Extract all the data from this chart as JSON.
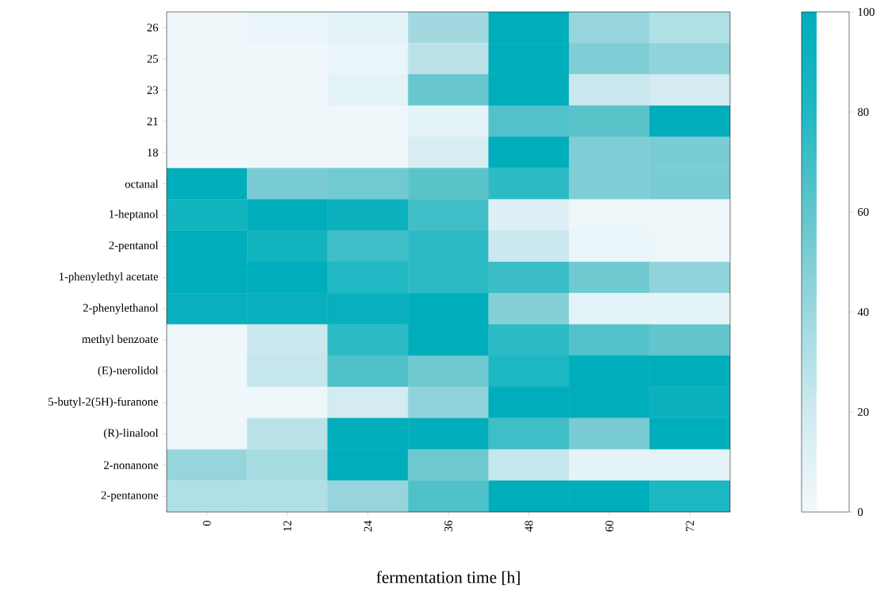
{
  "chart_data": {
    "type": "heatmap",
    "xlabel": "fermentation time [h]",
    "categories": [
      "0",
      "12",
      "24",
      "36",
      "48",
      "60",
      "72"
    ],
    "y_categories": [
      "26",
      "25",
      "23",
      "21",
      "18",
      "octanal",
      "1-heptanol",
      "2-pentanol",
      "1-phenylethyl acetate",
      "2-phenylethanol",
      "methyl benzoate",
      "(E)-nerolidol",
      "5-butyl-2(5H)-furanone",
      "(R)-linalool",
      "2-nonanone",
      "2-pentanone"
    ],
    "cells": [
      [
        2,
        5,
        8,
        38,
        100,
        42,
        32
      ],
      [
        2,
        2,
        5,
        28,
        100,
        50,
        44
      ],
      [
        2,
        2,
        8,
        58,
        100,
        22,
        18
      ],
      [
        2,
        2,
        2,
        8,
        65,
        62,
        100
      ],
      [
        2,
        2,
        2,
        15,
        100,
        50,
        52
      ],
      [
        100,
        52,
        55,
        62,
        76,
        50,
        52
      ],
      [
        88,
        100,
        92,
        70,
        12,
        3,
        3
      ],
      [
        100,
        88,
        70,
        76,
        22,
        5,
        3
      ],
      [
        100,
        100,
        80,
        76,
        72,
        56,
        44
      ],
      [
        95,
        95,
        95,
        100,
        48,
        8,
        8
      ],
      [
        2,
        22,
        76,
        100,
        76,
        64,
        60
      ],
      [
        2,
        24,
        66,
        56,
        82,
        100,
        100
      ],
      [
        2,
        3,
        18,
        44,
        100,
        100,
        92
      ],
      [
        2,
        28,
        100,
        98,
        70,
        52,
        100
      ],
      [
        42,
        36,
        100,
        56,
        24,
        8,
        8
      ],
      [
        32,
        32,
        42,
        66,
        100,
        100,
        82
      ]
    ],
    "clim": [
      0,
      100
    ],
    "cticks": [
      0,
      20,
      40,
      60,
      80,
      100
    ]
  }
}
